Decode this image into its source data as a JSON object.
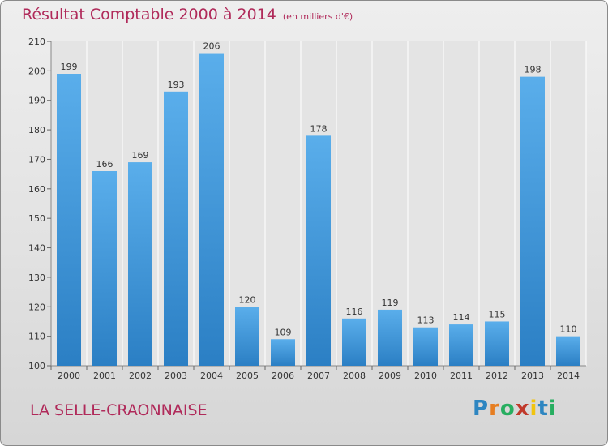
{
  "chart_data": {
    "type": "bar",
    "title": "Résultat Comptable 2000 à 2014",
    "subtitle": "(en milliers d'€)",
    "categories": [
      "2000",
      "2001",
      "2002",
      "2003",
      "2004",
      "2005",
      "2006",
      "2007",
      "2008",
      "2009",
      "2010",
      "2011",
      "2012",
      "2013",
      "2014"
    ],
    "values": [
      199,
      166,
      169,
      193,
      206,
      120,
      109,
      178,
      116,
      119,
      113,
      114,
      115,
      198,
      110
    ],
    "ylim": [
      100,
      210
    ],
    "yticks": [
      100,
      110,
      120,
      130,
      140,
      150,
      160,
      170,
      180,
      190,
      200,
      210
    ],
    "grid": "vertical",
    "xlabel": "",
    "ylabel": ""
  },
  "footer": {
    "commune": "LA SELLE-CRAONNAISE",
    "logo": "Proxiti"
  },
  "colors": {
    "title": "#b02a5a",
    "bar_light": "#5aaeeb",
    "bar_dark": "#2b7fc4",
    "axis_text": "#333333",
    "grid": "#ffffff"
  }
}
